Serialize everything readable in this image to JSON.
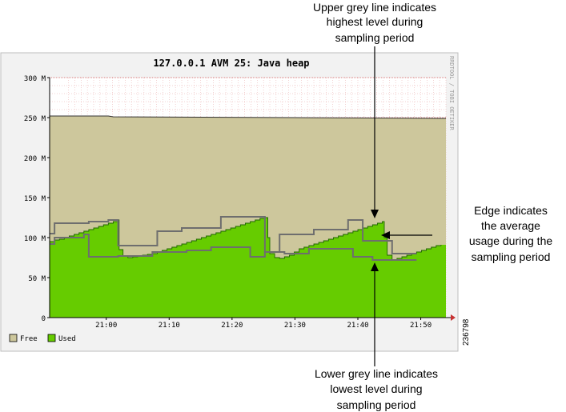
{
  "chart_data": {
    "type": "area",
    "title": "127.0.0.1 AVM 25: Java heap",
    "watermark": "RRDTOOL / TOBI OETIKER",
    "figure_id": "236798",
    "y_ticks": [
      "0",
      "50 M",
      "100 M",
      "150 M",
      "200 M",
      "250 M",
      "300 M"
    ],
    "ylim": [
      0,
      300
    ],
    "x_ticks": [
      "21:00",
      "21:10",
      "21:20",
      "21:30",
      "21:40",
      "21:50"
    ],
    "grid": true,
    "legend_position": "bottom-left",
    "colors": {
      "free": "#cdc79c",
      "used": "#66cc00",
      "used_edge": "#1f6600",
      "minmax_line": "#6e6e6e",
      "grid": "#c83232",
      "frame_bg": "#f2f2f2"
    },
    "legend": [
      {
        "key": "free",
        "label": "Free"
      },
      {
        "key": "used",
        "label": "Used"
      }
    ],
    "series": [
      {
        "key": "used",
        "points": [
          [
            0,
            95
          ],
          [
            1,
            97
          ],
          [
            2,
            98
          ],
          [
            3,
            100
          ],
          [
            4,
            102
          ],
          [
            5,
            104
          ],
          [
            6,
            106
          ],
          [
            7,
            108
          ],
          [
            8,
            110
          ],
          [
            9,
            112
          ],
          [
            10,
            114
          ],
          [
            11,
            116
          ],
          [
            12,
            118
          ],
          [
            13,
            120
          ],
          [
            14,
            122
          ],
          [
            14.2,
            85
          ],
          [
            15,
            77
          ],
          [
            16,
            75
          ],
          [
            17,
            76
          ],
          [
            18,
            77
          ],
          [
            19,
            78
          ],
          [
            20,
            79
          ],
          [
            21,
            80
          ],
          [
            22,
            82
          ],
          [
            23,
            84
          ],
          [
            24,
            86
          ],
          [
            25,
            88
          ],
          [
            26,
            90
          ],
          [
            27,
            92
          ],
          [
            28,
            94
          ],
          [
            29,
            96
          ],
          [
            30,
            98
          ],
          [
            31,
            100
          ],
          [
            32,
            102
          ],
          [
            33,
            104
          ],
          [
            34,
            106
          ],
          [
            35,
            108
          ],
          [
            36,
            110
          ],
          [
            37,
            112
          ],
          [
            38,
            114
          ],
          [
            39,
            116
          ],
          [
            40,
            118
          ],
          [
            41,
            120
          ],
          [
            42,
            122
          ],
          [
            43,
            124
          ],
          [
            44,
            125
          ],
          [
            44.6,
            100
          ],
          [
            45,
            80
          ],
          [
            46,
            75
          ],
          [
            47,
            74
          ],
          [
            48,
            76
          ],
          [
            49,
            78
          ],
          [
            50,
            82
          ],
          [
            51,
            86
          ],
          [
            52,
            88
          ],
          [
            53,
            90
          ],
          [
            54,
            92
          ],
          [
            55,
            94
          ],
          [
            56,
            96
          ],
          [
            57,
            98
          ],
          [
            58,
            100
          ],
          [
            59,
            102
          ],
          [
            60,
            104
          ],
          [
            61,
            106
          ],
          [
            62,
            108
          ],
          [
            63,
            110
          ],
          [
            64,
            112
          ],
          [
            65,
            114
          ],
          [
            66,
            116
          ],
          [
            67,
            118
          ],
          [
            68,
            120
          ],
          [
            68.4,
            100
          ],
          [
            69,
            78
          ],
          [
            70,
            72
          ],
          [
            71,
            74
          ],
          [
            72,
            76
          ],
          [
            73,
            78
          ],
          [
            74,
            80
          ],
          [
            75,
            82
          ],
          [
            76,
            84
          ],
          [
            77,
            86
          ],
          [
            78,
            88
          ],
          [
            79,
            90
          ],
          [
            80,
            91
          ]
        ]
      },
      {
        "key": "total",
        "points": [
          [
            0,
            252
          ],
          [
            12,
            252
          ],
          [
            13,
            251
          ],
          [
            50,
            250
          ],
          [
            80,
            249
          ]
        ]
      },
      {
        "key": "max",
        "points": [
          [
            0,
            105
          ],
          [
            1,
            105
          ],
          [
            1,
            118
          ],
          [
            8,
            118
          ],
          [
            8,
            120
          ],
          [
            12,
            120
          ],
          [
            12,
            122
          ],
          [
            14,
            122
          ],
          [
            14,
            90
          ],
          [
            22,
            90
          ],
          [
            22,
            108
          ],
          [
            27,
            108
          ],
          [
            27,
            112
          ],
          [
            35,
            112
          ],
          [
            35,
            126
          ],
          [
            44,
            126
          ],
          [
            44,
            82
          ],
          [
            47,
            82
          ],
          [
            47,
            104
          ],
          [
            54,
            104
          ],
          [
            54,
            110
          ],
          [
            61,
            110
          ],
          [
            61,
            122
          ],
          [
            64,
            122
          ],
          [
            64,
            96
          ],
          [
            70,
            96
          ],
          [
            70,
            80
          ],
          [
            75,
            80
          ]
        ]
      },
      {
        "key": "min",
        "points": [
          [
            0,
            92
          ],
          [
            1,
            92
          ],
          [
            1,
            100
          ],
          [
            7,
            100
          ],
          [
            7,
            104
          ],
          [
            8,
            104
          ],
          [
            8,
            76
          ],
          [
            14,
            76
          ],
          [
            14,
            77
          ],
          [
            21,
            77
          ],
          [
            21,
            82
          ],
          [
            28,
            82
          ],
          [
            28,
            84
          ],
          [
            33,
            84
          ],
          [
            33,
            88
          ],
          [
            41,
            88
          ],
          [
            41,
            76
          ],
          [
            44,
            76
          ],
          [
            44,
            82
          ],
          [
            48,
            82
          ],
          [
            48,
            80
          ],
          [
            53,
            80
          ],
          [
            53,
            86
          ],
          [
            62,
            86
          ],
          [
            62,
            76
          ],
          [
            66,
            76
          ],
          [
            66,
            72
          ],
          [
            75,
            72
          ]
        ]
      }
    ],
    "x_window_minutes": [
      20.85,
      21.9
    ]
  },
  "annotations": {
    "upper_line": [
      "Upper grey line indicates",
      "highest level during",
      "sampling period"
    ],
    "edge": [
      "Edge indicates",
      "the average",
      "usage during the",
      "sampling period"
    ],
    "lower_line": [
      "Lower grey line indicates",
      "lowest level during",
      "sampling period"
    ]
  }
}
